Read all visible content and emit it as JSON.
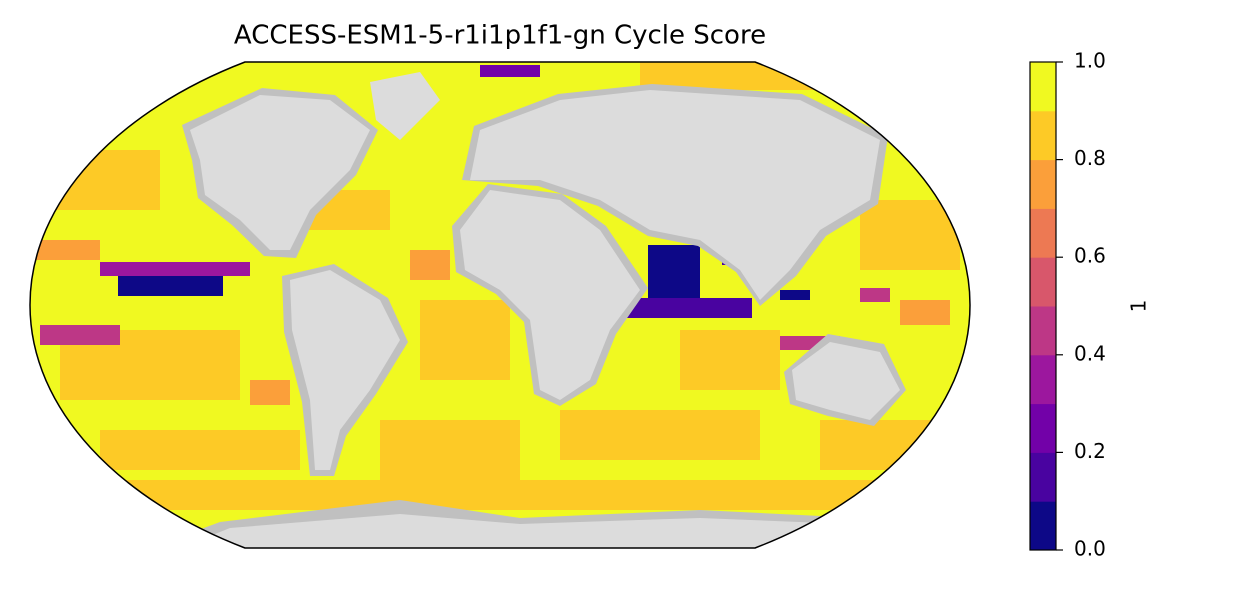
{
  "chart_data": {
    "type": "map",
    "title": "ACCESS-ESM1-5-r1i1p1f1-gn Cycle Score",
    "colorbar": {
      "label": "1",
      "levels": [
        0,
        0.1,
        0.2,
        0.3,
        0.4,
        0.5,
        0.6,
        0.7,
        0.8,
        0.9,
        1.0
      ],
      "colors": [
        "#0d0887",
        "#4903a0",
        "#7201a8",
        "#9c179e",
        "#bd3786",
        "#d8576b",
        "#ed7953",
        "#fb9f3a",
        "#fdca26",
        "#f0f921"
      ],
      "lim": [
        0,
        1.0
      ],
      "ticks": [
        {
          "value": 0,
          "label": "0.0"
        },
        0.2,
        0.4,
        0.6,
        0.8,
        {
          "value": 1.0,
          "label": "1.0"
        }
      ]
    }
  }
}
